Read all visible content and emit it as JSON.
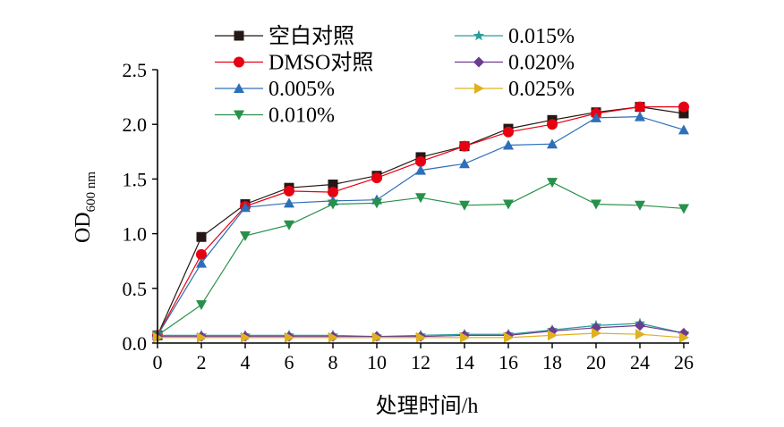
{
  "chart_data": {
    "type": "line",
    "title": "",
    "xlabel": "处理时间/h",
    "ylabel": {
      "main": "OD",
      "sub": "600 nm"
    },
    "x_ticks": [
      "0",
      "2",
      "4",
      "6",
      "8",
      "10",
      "12",
      "14",
      "16",
      "18",
      "20",
      "24",
      "26"
    ],
    "y_ticks": [
      "0.0",
      "0.5",
      "1.0",
      "1.5",
      "2.0",
      "2.5"
    ],
    "ylim": [
      0,
      2.5
    ],
    "grid": false,
    "legend_position": "top",
    "x": [
      "0",
      "2",
      "4",
      "6",
      "8",
      "10",
      "12",
      "14",
      "16",
      "18",
      "20",
      "24",
      "26"
    ],
    "series": [
      {
        "name": "空白对照",
        "color": "#231815",
        "marker": "square",
        "values": [
          0.07,
          0.97,
          1.27,
          1.42,
          1.45,
          1.53,
          1.7,
          1.8,
          1.96,
          2.04,
          2.11,
          2.16,
          2.1
        ]
      },
      {
        "name": "DMSO对照",
        "color": "#e60012",
        "marker": "circle",
        "values": [
          0.07,
          0.81,
          1.25,
          1.39,
          1.38,
          1.51,
          1.66,
          1.8,
          1.93,
          2.0,
          2.1,
          2.16,
          2.16
        ]
      },
      {
        "name": "0.005%",
        "color": "#2e6fb7",
        "marker": "triangle-up",
        "values": [
          0.07,
          0.73,
          1.24,
          1.28,
          1.3,
          1.31,
          1.58,
          1.64,
          1.81,
          1.82,
          2.06,
          2.07,
          1.95
        ]
      },
      {
        "name": "0.010%",
        "color": "#27914a",
        "marker": "triangle-down",
        "values": [
          0.07,
          0.35,
          0.98,
          1.08,
          1.27,
          1.28,
          1.33,
          1.26,
          1.27,
          1.47,
          1.27,
          1.26,
          1.23
        ]
      },
      {
        "name": "0.015%",
        "color": "#2a9d9a",
        "marker": "star",
        "values": [
          0.07,
          0.07,
          0.07,
          0.07,
          0.07,
          0.06,
          0.07,
          0.08,
          0.08,
          0.12,
          0.16,
          0.18,
          0.09
        ]
      },
      {
        "name": "0.020%",
        "color": "#6b3d8f",
        "marker": "diamond",
        "values": [
          0.06,
          0.06,
          0.06,
          0.06,
          0.06,
          0.06,
          0.06,
          0.07,
          0.07,
          0.11,
          0.14,
          0.16,
          0.09
        ]
      },
      {
        "name": "0.025%",
        "color": "#e0b020",
        "marker": "triangle-right",
        "values": [
          0.05,
          0.05,
          0.05,
          0.05,
          0.05,
          0.05,
          0.05,
          0.05,
          0.05,
          0.07,
          0.09,
          0.08,
          0.05
        ]
      }
    ]
  }
}
